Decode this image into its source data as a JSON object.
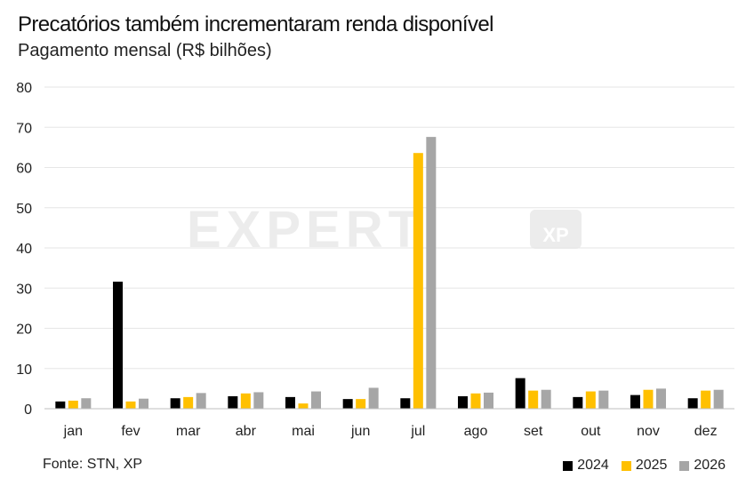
{
  "header": {
    "title": "Precatórios também incrementaram renda disponível",
    "subtitle": "Pagamento mensal (R$ bilhões)"
  },
  "footer": {
    "source": "Fonte: STN, XP"
  },
  "watermark": {
    "text": "EXPERT",
    "badge": "XP"
  },
  "colors": {
    "series_2024": "#000000",
    "series_2025": "#ffc000",
    "series_2026": "#a6a6a6",
    "grid": "#e6e6e6",
    "axis": "#bfbfbf"
  },
  "chart_data": {
    "type": "bar",
    "categories": [
      "jan",
      "fev",
      "mar",
      "abr",
      "mai",
      "jun",
      "jul",
      "ago",
      "set",
      "out",
      "nov",
      "dez"
    ],
    "series": [
      {
        "name": "2024",
        "values": [
          1.8,
          31.6,
          2.6,
          3.1,
          2.9,
          2.4,
          2.6,
          3.1,
          7.6,
          2.9,
          3.4,
          2.6
        ]
      },
      {
        "name": "2025",
        "values": [
          2.0,
          1.8,
          2.9,
          3.8,
          1.3,
          2.4,
          63.6,
          3.8,
          4.5,
          4.3,
          4.7,
          4.5
        ]
      },
      {
        "name": "2026",
        "values": [
          2.6,
          2.5,
          3.9,
          4.1,
          4.3,
          5.2,
          67.6,
          4.0,
          4.7,
          4.5,
          5.0,
          4.7
        ]
      }
    ],
    "yticks": [
      0,
      10,
      20,
      30,
      40,
      50,
      60,
      70,
      80
    ],
    "ylim": [
      0,
      80
    ],
    "grid": true,
    "legend": "bottom-right"
  }
}
